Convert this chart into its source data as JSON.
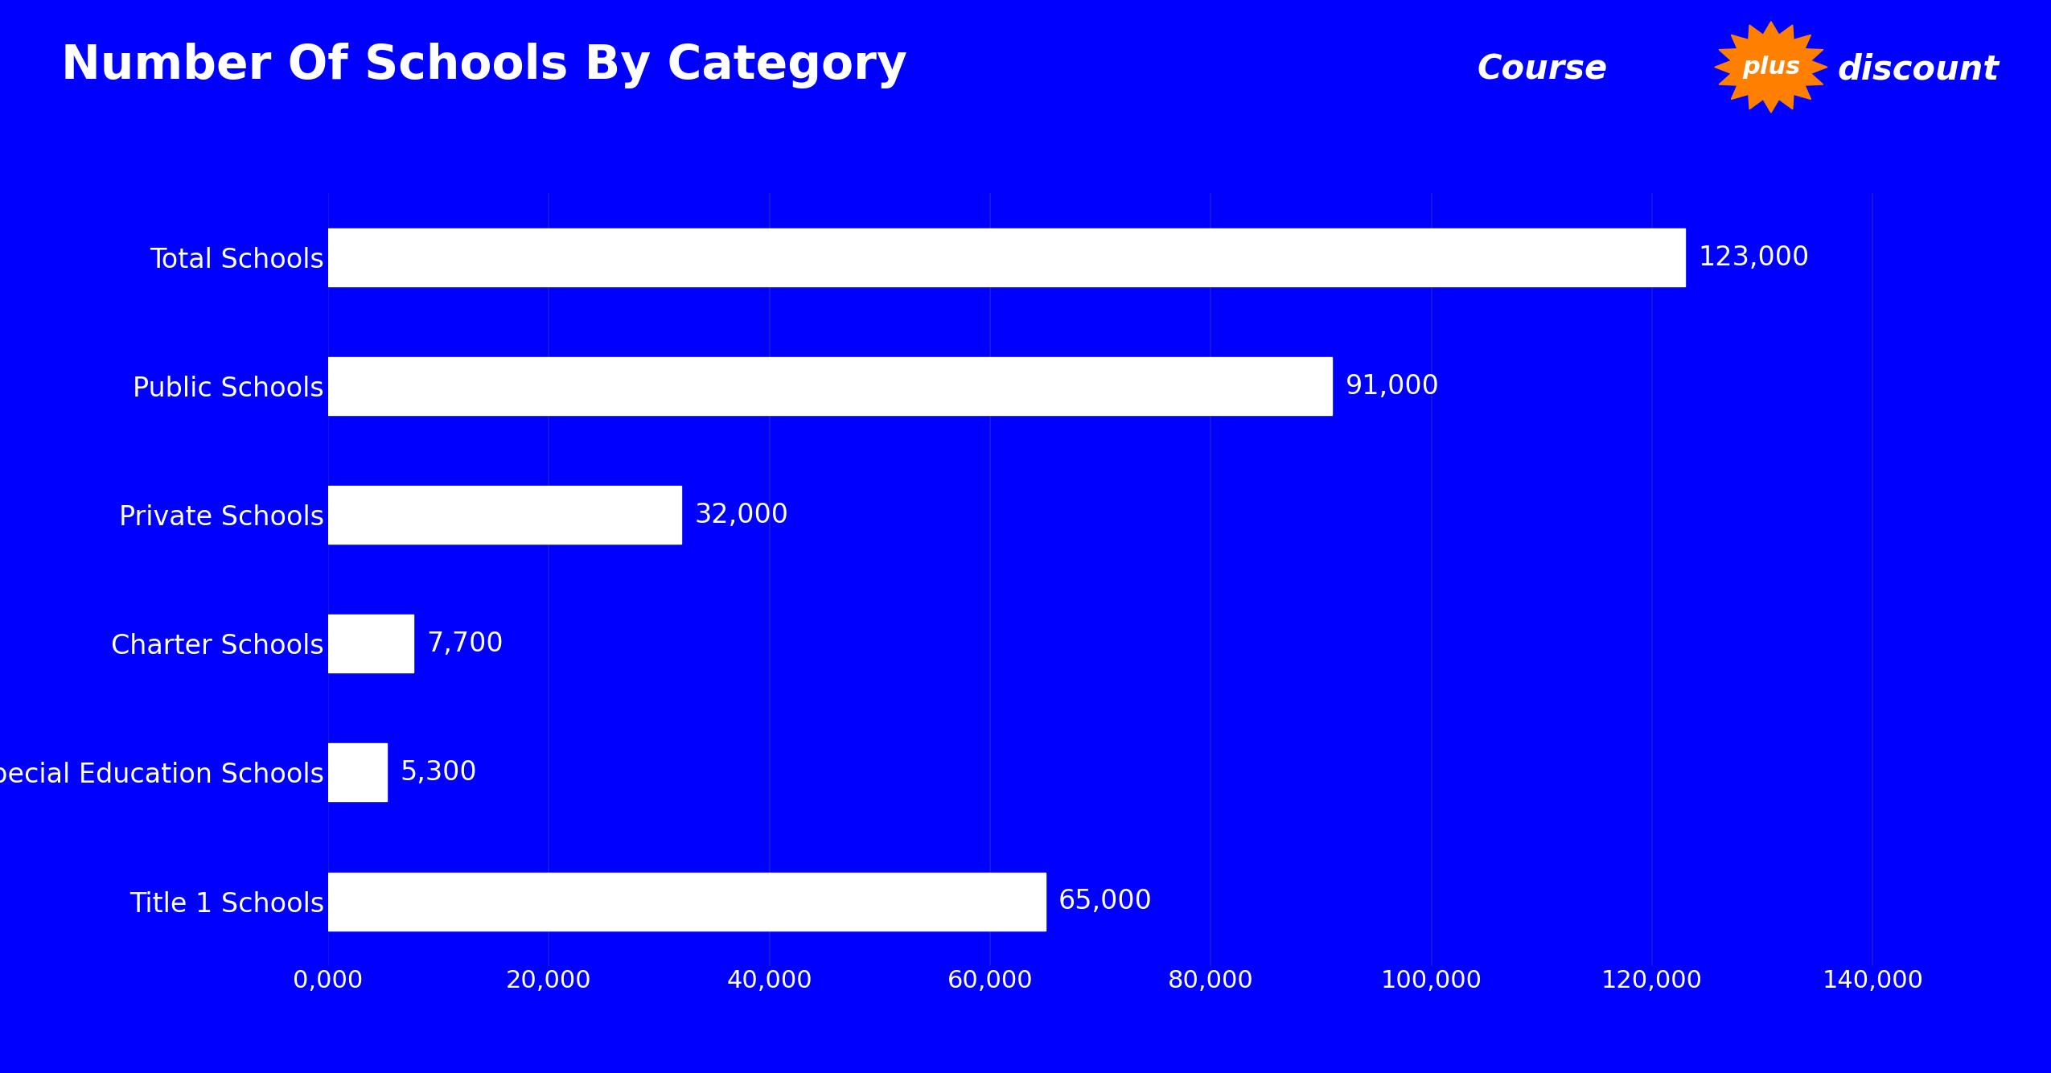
{
  "title": "Number Of Schools By Category",
  "background_color": "#0000FF",
  "bar_color": "#FFFFFF",
  "text_color": "#FFFFFF",
  "categories": [
    "Total Schools",
    "Public Schools",
    "Private Schools",
    "Charter Schools",
    "Special Education Schools",
    "Title 1 Schools"
  ],
  "values": [
    123000,
    91000,
    32000,
    7700,
    5300,
    65000
  ],
  "labels": [
    "123,000",
    "91,000",
    "32,000",
    "7,700",
    "5,300",
    "65,000"
  ],
  "xlim": [
    0,
    145000
  ],
  "xticks": [
    0,
    20000,
    40000,
    60000,
    80000,
    100000,
    120000,
    140000
  ],
  "xtick_labels": [
    "0,000",
    "20,000",
    "40,000",
    "60,000",
    "80,000",
    "100,000",
    "120,000",
    "140,000"
  ],
  "title_fontsize": 42,
  "label_fontsize": 24,
  "tick_fontsize": 22,
  "value_fontsize": 24,
  "logo_color": "#FF8000",
  "bar_height": 0.45
}
